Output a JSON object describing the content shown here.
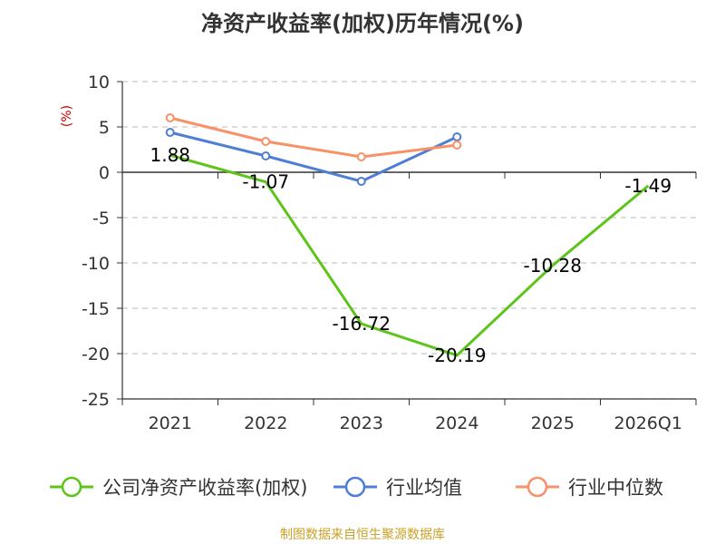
{
  "chart_data": {
    "type": "line",
    "title": "净资产收益率(加权)历年情况(%)",
    "ylabel": "(%)",
    "xlabel": "",
    "categories": [
      "2021",
      "2022",
      "2023",
      "2024",
      "2025",
      "2026Q1"
    ],
    "ylim": [
      -25,
      10
    ],
    "yticks": [
      10,
      5,
      0,
      -5,
      -10,
      -15,
      -20,
      -25
    ],
    "grid": true,
    "legend_position": "bottom",
    "series": [
      {
        "name": "公司净资产收益率(加权)",
        "color": "#5dc41a",
        "values": [
          1.88,
          -1.07,
          -16.72,
          -20.19,
          -10.28,
          -1.49
        ],
        "labels": [
          "1.88",
          "-1.07",
          "-16.72",
          "-20.19",
          "-10.28",
          "-1.49"
        ],
        "show_markers": false
      },
      {
        "name": "行业均值",
        "color": "#4f7fd5",
        "values": [
          4.4,
          1.8,
          -1.0,
          3.9,
          null,
          null
        ],
        "show_markers": true
      },
      {
        "name": "行业中位数",
        "color": "#f79168",
        "values": [
          6.0,
          3.4,
          1.7,
          3.0,
          null,
          null
        ],
        "show_markers": true
      }
    ],
    "source": "制图数据来自恒生聚源数据库"
  }
}
